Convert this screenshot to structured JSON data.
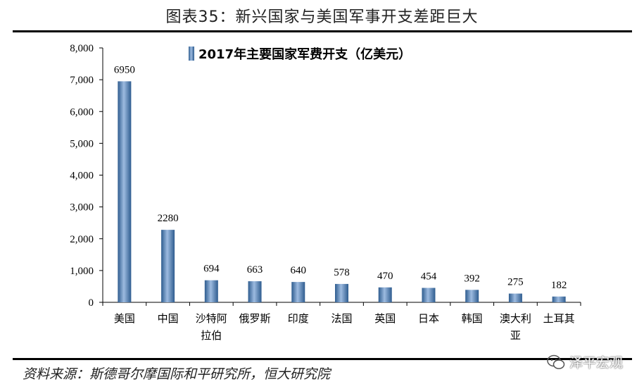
{
  "figure": {
    "title": "图表35：新兴国家与美国军事开支差距巨大",
    "source": "资料来源：斯德哥尔摩国际和平研究所，恒大研究院",
    "watermark": "泽平宏观"
  },
  "chart_data": {
    "type": "bar",
    "title": "",
    "xlabel": "",
    "ylabel": "",
    "categories": [
      "美国",
      "中国",
      "沙特阿拉伯",
      "俄罗斯",
      "印度",
      "法国",
      "英国",
      "日本",
      "韩国",
      "澳大利亚",
      "土耳其"
    ],
    "category_lines": [
      [
        "美国"
      ],
      [
        "中国"
      ],
      [
        "沙特阿",
        "拉伯"
      ],
      [
        "俄罗斯"
      ],
      [
        "印度"
      ],
      [
        "法国"
      ],
      [
        "英国"
      ],
      [
        "日本"
      ],
      [
        "韩国"
      ],
      [
        "澳大利",
        "亚"
      ],
      [
        "土耳其"
      ]
    ],
    "series": [
      {
        "name": "2017年主要国家军费开支（亿美元）",
        "values": [
          6950,
          2280,
          694,
          663,
          640,
          578,
          470,
          454,
          392,
          275,
          182
        ],
        "color": "#4F81BD"
      }
    ],
    "ylim": [
      0,
      8000
    ],
    "yticks": [
      0,
      1000,
      2000,
      3000,
      4000,
      5000,
      6000,
      7000,
      8000
    ],
    "ytick_labels": [
      "0",
      "1,000",
      "2,000",
      "3,000",
      "4,000",
      "5,000",
      "6,000",
      "7,000",
      "8,000"
    ],
    "data_labels": [
      "6950",
      "2280",
      "694",
      "663",
      "640",
      "578",
      "470",
      "454",
      "392",
      "275",
      "182"
    ],
    "grid": false,
    "legend_position": "top"
  }
}
